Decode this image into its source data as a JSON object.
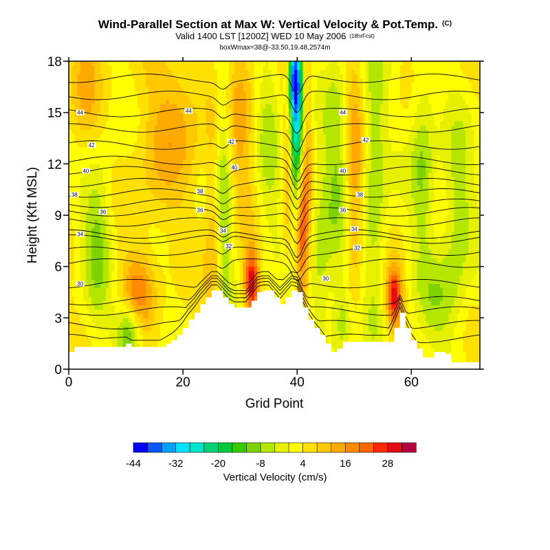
{
  "chart_data": {
    "type": "heatmap",
    "title": "Wind-Parallel Section at Max W: Vertical Velocity & Pot.Temp.",
    "title_mark": "(C)",
    "subtitle": "Valid 1400 LST [1200Z] WED 10 May 2006",
    "subtitle_note": "(18hrFcst)",
    "subtitle2": "boxWmax=38@-33.50,19.48,2574m",
    "xlabel": "Grid Point",
    "ylabel": "Height (Kft MSL)",
    "xlim": [
      0,
      72
    ],
    "ylim": [
      0,
      18
    ],
    "x_ticks": [
      0,
      20,
      40,
      60
    ],
    "y_ticks": [
      0,
      3,
      6,
      9,
      12,
      15,
      18
    ],
    "colorbar": {
      "title": "Vertical Velocity (cm/s)",
      "tick_labels": [
        "-44",
        "-32",
        "-20",
        "-8",
        "4",
        "16",
        "28"
      ],
      "tick_values": [
        -44,
        -32,
        -20,
        -8,
        4,
        16,
        28
      ],
      "levels": [
        -44,
        -40,
        -36,
        -32,
        -28,
        -24,
        -20,
        -16,
        -12,
        -8,
        -4,
        0,
        4,
        8,
        12,
        16,
        20,
        24,
        28,
        32
      ],
      "colors": [
        "#0000ff",
        "#0a55ff",
        "#00a0ff",
        "#00e0ff",
        "#00e6c8",
        "#00d278",
        "#00c83c",
        "#37c800",
        "#7dd200",
        "#b4e600",
        "#e6f000",
        "#ffff00",
        "#ffe100",
        "#ffc800",
        "#ffaa00",
        "#ff8c00",
        "#ff6400",
        "#ff2800",
        "#e60a14",
        "#b4003c"
      ]
    },
    "terrain_profile": {
      "x": [
        0,
        1,
        10,
        11,
        12,
        13,
        16,
        17,
        18,
        19,
        20,
        21,
        22,
        23,
        24,
        25,
        26,
        27,
        28,
        29,
        30,
        31,
        32,
        33,
        34,
        35,
        36,
        37,
        38,
        39,
        40,
        41,
        42,
        43,
        44,
        45,
        46,
        47,
        48,
        49,
        50,
        51,
        52,
        53,
        54,
        55,
        56,
        57,
        58,
        59,
        60,
        61,
        62,
        63,
        64,
        65,
        66,
        67,
        68,
        69,
        70,
        71,
        72
      ],
      "height_kft": [
        1.0,
        1.3,
        1.5,
        1.3,
        1.3,
        1.3,
        1.3,
        1.5,
        1.7,
        2.0,
        2.4,
        2.9,
        3.3,
        3.8,
        4.2,
        4.6,
        4.6,
        4.2,
        3.8,
        3.6,
        3.6,
        3.6,
        4.0,
        4.5,
        4.6,
        4.6,
        4.2,
        3.8,
        4.2,
        4.6,
        4.5,
        3.6,
        2.9,
        2.4,
        2.0,
        1.5,
        1.0,
        1.2,
        1.6,
        1.6,
        1.6,
        1.6,
        1.6,
        1.6,
        1.6,
        1.6,
        1.6,
        2.4,
        3.3,
        2.4,
        1.7,
        1.2,
        0.7,
        0.7,
        1.0,
        1.0,
        0.9,
        0.4,
        0.4,
        0.4,
        0.4,
        0.4,
        0.4
      ]
    },
    "velocity_features": [
      {
        "x": 40,
        "z": 13,
        "w": -38,
        "sx": 1.0,
        "sz": 5.0
      },
      {
        "x": 40.5,
        "z": 8,
        "w": 32,
        "sx": 0.9,
        "sz": 3.0
      },
      {
        "x": 39.5,
        "z": 17,
        "w": -26,
        "sx": 0.8,
        "sz": 1.5
      },
      {
        "x": 41.5,
        "z": 13,
        "w": 14,
        "sx": 0.8,
        "sz": 5.0
      },
      {
        "x": 38.5,
        "z": 11,
        "w": 14,
        "sx": 0.7,
        "sz": 4.0
      },
      {
        "x": 32,
        "z": 5.0,
        "w": 28,
        "sx": 0.9,
        "sz": 1.3
      },
      {
        "x": 57,
        "z": 4.2,
        "w": 26,
        "sx": 1.0,
        "sz": 1.2
      },
      {
        "x": 10.5,
        "z": 2.2,
        "w": -18,
        "sx": 1.5,
        "sz": 1.3
      },
      {
        "x": 12,
        "z": 4.5,
        "w": 14,
        "sx": 2.0,
        "sz": 1.5
      },
      {
        "x": 5,
        "z": 8,
        "w": -12,
        "sx": 1.8,
        "sz": 3.5
      },
      {
        "x": 27,
        "z": 11,
        "w": -14,
        "sx": 1.2,
        "sz": 6.0
      },
      {
        "x": 25.5,
        "z": 8,
        "w": 12,
        "sx": 1.0,
        "sz": 5.0
      },
      {
        "x": 35,
        "z": 14,
        "w": -8,
        "sx": 1.5,
        "sz": 5.0
      },
      {
        "x": 44,
        "z": 7,
        "w": -10,
        "sx": 1.5,
        "sz": 4.0
      },
      {
        "x": 47,
        "z": 12,
        "w": -10,
        "sx": 1.5,
        "sz": 5.0
      },
      {
        "x": 50,
        "z": 11,
        "w": 12,
        "sx": 1.2,
        "sz": 5.0
      },
      {
        "x": 53.5,
        "z": 11,
        "w": -12,
        "sx": 1.5,
        "sz": 6.0
      },
      {
        "x": 62,
        "z": 12,
        "w": -12,
        "sx": 1.5,
        "sz": 4.0
      },
      {
        "x": 68,
        "z": 9,
        "w": -10,
        "sx": 2.0,
        "sz": 4.0
      },
      {
        "x": 30,
        "z": 15,
        "w": 10,
        "sx": 2.0,
        "sz": 4.0
      },
      {
        "x": 20,
        "z": 15,
        "w": 8,
        "sx": 3.0,
        "sz": 3.0
      },
      {
        "x": 65,
        "z": 4,
        "w": -8,
        "sx": 2.5,
        "sz": 2.0
      },
      {
        "x": 48,
        "z": 2.8,
        "w": -10,
        "sx": 1.2,
        "sz": 1.5
      },
      {
        "x": 15,
        "z": 12,
        "w": 6,
        "sx": 3.0,
        "sz": 4.0
      },
      {
        "x": 3,
        "z": 16,
        "w": 8,
        "sx": 2.0,
        "sz": 3.0
      }
    ],
    "theta_contours": [
      {
        "z": 1.8,
        "label": ""
      },
      {
        "z": 2.6,
        "label": ""
      },
      {
        "z": 3.4,
        "label": ""
      },
      {
        "z": 4.0,
        "label": ""
      },
      {
        "z": 5.0,
        "label": "30"
      },
      {
        "z": 6.2,
        "label": ""
      },
      {
        "z": 6.9,
        "label": "32"
      },
      {
        "z": 7.6,
        "label": ""
      },
      {
        "z": 7.9,
        "label": "34"
      },
      {
        "z": 8.6,
        "label": ""
      },
      {
        "z": 9.2,
        "label": "36"
      },
      {
        "z": 9.7,
        "label": ""
      },
      {
        "z": 10.3,
        "label": "38"
      },
      {
        "z": 10.9,
        "label": ""
      },
      {
        "z": 11.6,
        "label": "40"
      },
      {
        "z": 12.2,
        "label": ""
      },
      {
        "z": 13.1,
        "label": "42"
      },
      {
        "z": 14.1,
        "label": ""
      },
      {
        "z": 15.0,
        "label": "44"
      },
      {
        "z": 16.0,
        "label": ""
      },
      {
        "z": 17.0,
        "label": ""
      }
    ],
    "contour_labels": [
      {
        "text": "44",
        "x": 2,
        "z": 15.0
      },
      {
        "text": "42",
        "x": 4,
        "z": 13.1
      },
      {
        "text": "40",
        "x": 3,
        "z": 11.6
      },
      {
        "text": "38",
        "x": 1,
        "z": 10.2
      },
      {
        "text": "36",
        "x": 6,
        "z": 9.2
      },
      {
        "text": "34",
        "x": 2,
        "z": 7.9
      },
      {
        "text": "30",
        "x": 2,
        "z": 5.0
      },
      {
        "text": "44",
        "x": 21,
        "z": 15.1
      },
      {
        "text": "42",
        "x": 28.5,
        "z": 13.3
      },
      {
        "text": "40",
        "x": 29,
        "z": 11.8
      },
      {
        "text": "38",
        "x": 23,
        "z": 10.4
      },
      {
        "text": "36",
        "x": 23,
        "z": 9.3
      },
      {
        "text": "34",
        "x": 27,
        "z": 8.1
      },
      {
        "text": "32",
        "x": 28,
        "z": 7.2
      },
      {
        "text": "44",
        "x": 48,
        "z": 15.0
      },
      {
        "text": "42",
        "x": 52,
        "z": 13.4
      },
      {
        "text": "40",
        "x": 48,
        "z": 11.6
      },
      {
        "text": "38",
        "x": 51,
        "z": 10.2
      },
      {
        "text": "36",
        "x": 48,
        "z": 9.3
      },
      {
        "text": "34",
        "x": 50,
        "z": 8.2
      },
      {
        "text": "32",
        "x": 50.5,
        "z": 7.1
      },
      {
        "text": "30",
        "x": 45,
        "z": 5.3
      }
    ]
  }
}
